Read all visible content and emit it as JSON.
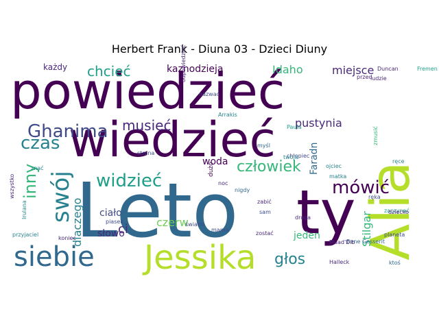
{
  "title": "Herbert Frank - Diuna 03 - Dzieci Diuny",
  "palette": [
    "#440154",
    "#482878",
    "#3e4a89",
    "#31688e",
    "#26828e",
    "#1f9e89",
    "#35b779",
    "#6ece58",
    "#b5de2b"
  ],
  "words": [
    "Leto",
    "powiedzieć",
    "wiedzieć",
    "Alia",
    "ty",
    "siebie",
    "Jessika",
    "Ghanima",
    "swój",
    "mówić",
    "widzieć",
    "człowiek",
    "czas",
    "chcieć",
    "musieć",
    "inny",
    "głos",
    "kaznodzieja",
    "pustynia",
    "miejsce",
    "Idaho",
    "każdy",
    "woda",
    "Stilgar",
    "ciało",
    "słowo",
    "dlaczego",
    "Faradn",
    "czerw",
    "jeden",
    "ci",
    "dużo",
    "ojciec",
    "Paula",
    "myśl",
    "matka",
    "planeta",
    "Bene Gesserit",
    "Muad'Dib",
    "zaczynać",
    "piasek",
    "światło",
    "zostać",
    "droga",
    "chłopiec",
    "noc",
    "nigdy",
    "Halleck",
    "ręka",
    "ktoś",
    "koniec",
    "zabić",
    "nazwać",
    "Duncan",
    "Fremen",
    "sam",
    "ludzie",
    "znać",
    "strona",
    "twoja",
    "wszystko",
    "przyjaciel",
    "Irulana",
    "zmusić",
    "dziecko",
    "ręce",
    "odpowiedzieć",
    "przed",
    "mama",
    "Arrakis"
  ]
}
